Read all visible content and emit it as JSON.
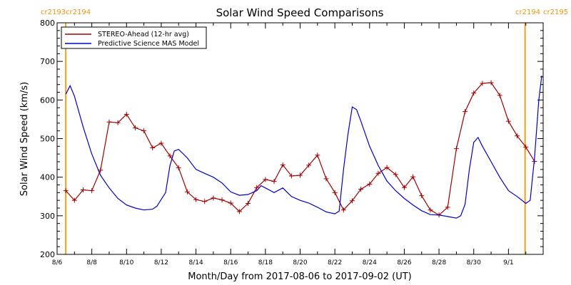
{
  "chart_data": {
    "type": "line",
    "title": "Solar Wind Speed Comparisons",
    "xlabel": "Month/Day from 2017-08-06 to 2017-09-02 (UT)",
    "ylabel": "Solar Wind Speed (km/s)",
    "xlim": [
      "2017-08-06",
      "2017-09-02"
    ],
    "ylim": [
      200,
      800
    ],
    "yticks": [
      200,
      300,
      400,
      500,
      600,
      700,
      800
    ],
    "xticks": [
      {
        "date": "2017-08-06",
        "label": "8/6"
      },
      {
        "date": "2017-08-08",
        "label": "8/8"
      },
      {
        "date": "2017-08-10",
        "label": "8/10"
      },
      {
        "date": "2017-08-12",
        "label": "8/12"
      },
      {
        "date": "2017-08-14",
        "label": "8/14"
      },
      {
        "date": "2017-08-16",
        "label": "8/16"
      },
      {
        "date": "2017-08-18",
        "label": "8/18"
      },
      {
        "date": "2017-08-20",
        "label": "8/20"
      },
      {
        "date": "2017-08-22",
        "label": "8/22"
      },
      {
        "date": "2017-08-24",
        "label": "8/24"
      },
      {
        "date": "2017-08-26",
        "label": "8/26"
      },
      {
        "date": "2017-08-28",
        "label": "8/28"
      },
      {
        "date": "2017-08-30",
        "label": "8/30"
      },
      {
        "date": "2017-09-01",
        "label": "9/1"
      }
    ],
    "carrington_markers": [
      {
        "date": "2017-08-06 12:00",
        "left_label": "cr2193",
        "right_label": "cr2194"
      },
      {
        "date": "2017-09-01 23:00",
        "left_label": "cr2194",
        "right_label": "cr2195"
      }
    ],
    "grid": false,
    "legend_position": "top-left",
    "series": [
      {
        "name": "STEREO-Ahead (12-hr avg)",
        "color": "#a00000",
        "marker": "plus",
        "points": [
          [
            "2017-08-06 12:00",
            365
          ],
          [
            "2017-08-07 00:00",
            340
          ],
          [
            "2017-08-07 12:00",
            367
          ],
          [
            "2017-08-08 00:00",
            365
          ],
          [
            "2017-08-08 12:00",
            418
          ],
          [
            "2017-08-09 00:00",
            543
          ],
          [
            "2017-08-09 12:00",
            541
          ],
          [
            "2017-08-10 00:00",
            563
          ],
          [
            "2017-08-10 12:00",
            528
          ],
          [
            "2017-08-11 00:00",
            520
          ],
          [
            "2017-08-11 12:00",
            476
          ],
          [
            "2017-08-12 00:00",
            488
          ],
          [
            "2017-08-12 12:00",
            455
          ],
          [
            "2017-08-13 00:00",
            424
          ],
          [
            "2017-08-13 12:00",
            362
          ],
          [
            "2017-08-14 00:00",
            342
          ],
          [
            "2017-08-14 12:00",
            337
          ],
          [
            "2017-08-15 00:00",
            346
          ],
          [
            "2017-08-15 12:00",
            341
          ],
          [
            "2017-08-16 00:00",
            333
          ],
          [
            "2017-08-16 12:00",
            311
          ],
          [
            "2017-08-17 00:00",
            332
          ],
          [
            "2017-08-17 12:00",
            373
          ],
          [
            "2017-08-18 00:00",
            394
          ],
          [
            "2017-08-18 12:00",
            389
          ],
          [
            "2017-08-19 00:00",
            432
          ],
          [
            "2017-08-19 12:00",
            403
          ],
          [
            "2017-08-20 00:00",
            405
          ],
          [
            "2017-08-20 12:00",
            431
          ],
          [
            "2017-08-21 00:00",
            457
          ],
          [
            "2017-08-21 12:00",
            396
          ],
          [
            "2017-08-22 00:00",
            360
          ],
          [
            "2017-08-22 12:00",
            315
          ],
          [
            "2017-08-23 00:00",
            339
          ],
          [
            "2017-08-23 12:00",
            369
          ],
          [
            "2017-08-24 00:00",
            382
          ],
          [
            "2017-08-24 12:00",
            410
          ],
          [
            "2017-08-25 00:00",
            425
          ],
          [
            "2017-08-25 12:00",
            407
          ],
          [
            "2017-08-26 00:00",
            373
          ],
          [
            "2017-08-26 12:00",
            401
          ],
          [
            "2017-08-27 00:00",
            352
          ],
          [
            "2017-08-27 12:00",
            315
          ],
          [
            "2017-08-28 00:00",
            302
          ],
          [
            "2017-08-28 12:00",
            322
          ],
          [
            "2017-08-29 00:00",
            474
          ],
          [
            "2017-08-29 12:00",
            570
          ],
          [
            "2017-08-30 00:00",
            618
          ],
          [
            "2017-08-30 12:00",
            643
          ],
          [
            "2017-08-31 00:00",
            645
          ],
          [
            "2017-08-31 12:00",
            612
          ],
          [
            "2017-09-01 00:00",
            545
          ],
          [
            "2017-09-01 12:00",
            507
          ],
          [
            "2017-09-02 00:00",
            478
          ],
          [
            "2017-09-02 12:00",
            441
          ]
        ]
      },
      {
        "name": "Predictive Science MAS Model",
        "color": "#0000c8",
        "marker": "none",
        "points": [
          [
            "2017-08-06 12:00",
            615
          ],
          [
            "2017-08-06 18:00",
            637
          ],
          [
            "2017-08-07 00:00",
            610
          ],
          [
            "2017-08-07 12:00",
            530
          ],
          [
            "2017-08-08 00:00",
            460
          ],
          [
            "2017-08-08 12:00",
            405
          ],
          [
            "2017-08-09 00:00",
            372
          ],
          [
            "2017-08-09 12:00",
            345
          ],
          [
            "2017-08-10 00:00",
            328
          ],
          [
            "2017-08-10 12:00",
            320
          ],
          [
            "2017-08-11 00:00",
            315
          ],
          [
            "2017-08-11 12:00",
            317
          ],
          [
            "2017-08-11 18:00",
            325
          ],
          [
            "2017-08-12 06:00",
            360
          ],
          [
            "2017-08-12 12:00",
            430
          ],
          [
            "2017-08-12 18:00",
            468
          ],
          [
            "2017-08-13 00:00",
            472
          ],
          [
            "2017-08-13 12:00",
            450
          ],
          [
            "2017-08-14 00:00",
            420
          ],
          [
            "2017-08-14 12:00",
            410
          ],
          [
            "2017-08-15 00:00",
            400
          ],
          [
            "2017-08-15 12:00",
            385
          ],
          [
            "2017-08-16 00:00",
            362
          ],
          [
            "2017-08-16 12:00",
            353
          ],
          [
            "2017-08-17 00:00",
            355
          ],
          [
            "2017-08-17 12:00",
            365
          ],
          [
            "2017-08-17 18:00",
            378
          ],
          [
            "2017-08-18 00:00",
            372
          ],
          [
            "2017-08-18 12:00",
            360
          ],
          [
            "2017-08-19 00:00",
            372
          ],
          [
            "2017-08-19 12:00",
            350
          ],
          [
            "2017-08-20 00:00",
            340
          ],
          [
            "2017-08-20 12:00",
            333
          ],
          [
            "2017-08-21 00:00",
            322
          ],
          [
            "2017-08-21 12:00",
            310
          ],
          [
            "2017-08-22 00:00",
            305
          ],
          [
            "2017-08-22 06:00",
            312
          ],
          [
            "2017-08-22 12:00",
            420
          ],
          [
            "2017-08-22 18:00",
            510
          ],
          [
            "2017-08-23 00:00",
            582
          ],
          [
            "2017-08-23 06:00",
            575
          ],
          [
            "2017-08-23 12:00",
            545
          ],
          [
            "2017-08-24 00:00",
            480
          ],
          [
            "2017-08-24 12:00",
            430
          ],
          [
            "2017-08-25 00:00",
            390
          ],
          [
            "2017-08-25 12:00",
            365
          ],
          [
            "2017-08-26 00:00",
            345
          ],
          [
            "2017-08-26 12:00",
            328
          ],
          [
            "2017-08-27 00:00",
            313
          ],
          [
            "2017-08-27 12:00",
            303
          ],
          [
            "2017-08-28 00:00",
            302
          ],
          [
            "2017-08-28 12:00",
            298
          ],
          [
            "2017-08-29 00:00",
            294
          ],
          [
            "2017-08-29 06:00",
            300
          ],
          [
            "2017-08-29 12:00",
            330
          ],
          [
            "2017-08-29 18:00",
            420
          ],
          [
            "2017-08-30 00:00",
            490
          ],
          [
            "2017-08-30 06:00",
            503
          ],
          [
            "2017-08-30 12:00",
            480
          ],
          [
            "2017-08-31 00:00",
            440
          ],
          [
            "2017-08-31 12:00",
            400
          ],
          [
            "2017-09-01 00:00",
            365
          ],
          [
            "2017-09-01 12:00",
            350
          ],
          [
            "2017-09-02 00:00",
            332
          ],
          [
            "2017-09-02 06:00",
            340
          ],
          [
            "2017-09-02 12:00",
            450
          ],
          [
            "2017-09-02 18:00",
            600
          ],
          [
            "2017-09-02 22:00",
            663
          ]
        ]
      }
    ]
  }
}
